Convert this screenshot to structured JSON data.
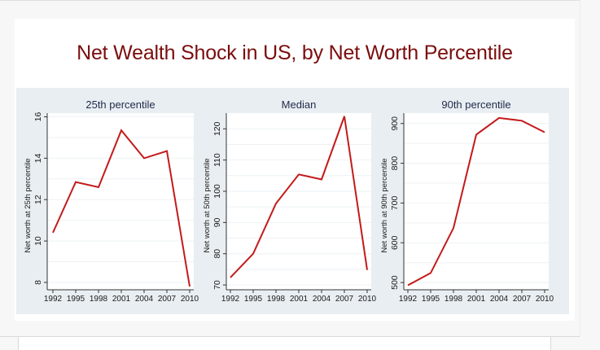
{
  "slide": {
    "title": "Net Wealth Shock in US, by Net Worth Percentile"
  },
  "colors": {
    "title": "#7b0d0d",
    "line": "#c41a1a",
    "graph_background": "#e9eef2",
    "plot_background": "#ffffff",
    "grid": "#eef2f5",
    "axis_text": "#1a1a1a",
    "panel_title": "#1f2a4a"
  },
  "chart_data": [
    {
      "type": "line",
      "title": "25th percentile",
      "xlabel": "",
      "ylabel": "Net worth at 25th percentile",
      "x": [
        1992,
        1995,
        1998,
        2001,
        2004,
        2007,
        2010
      ],
      "values": [
        10.4,
        12.85,
        12.6,
        15.35,
        14.0,
        14.35,
        7.8
      ],
      "xticks": [
        "1992",
        "1995",
        "1998",
        "2001",
        "2004",
        "2007",
        "2010"
      ],
      "yticks": [
        8,
        10,
        12,
        14,
        16
      ],
      "ytick_labels": [
        "8",
        "10",
        "12",
        "14",
        "16"
      ],
      "ylim": [
        7.8,
        16.1
      ],
      "grid": true
    },
    {
      "type": "line",
      "title": "Median",
      "xlabel": "",
      "ylabel": "Net worth at 50th percentile",
      "x": [
        1992,
        1995,
        1998,
        2001,
        2004,
        2007,
        2010
      ],
      "values": [
        72.4,
        80.0,
        96.1,
        105.4,
        103.8,
        124.0,
        74.8
      ],
      "xticks": [
        "1992",
        "1995",
        "1998",
        "2001",
        "2004",
        "2007",
        "2010"
      ],
      "yticks": [
        70,
        80,
        90,
        100,
        110,
        120
      ],
      "ytick_labels": [
        "70",
        "80",
        "90",
        "100",
        "110",
        "120"
      ],
      "ylim": [
        69.5,
        124.5
      ],
      "grid": true
    },
    {
      "type": "line",
      "title": "90th percentile",
      "xlabel": "",
      "ylabel": "Net worth at 90th percentile",
      "x": [
        1992,
        1995,
        1998,
        2001,
        2004,
        2007,
        2010
      ],
      "values": [
        493,
        524,
        637,
        872,
        914,
        907,
        878
      ],
      "xticks": [
        "1992",
        "1995",
        "1998",
        "2001",
        "2004",
        "2007",
        "2010"
      ],
      "yticks": [
        500,
        600,
        700,
        800,
        900
      ],
      "ytick_labels": [
        "500",
        "600",
        "700",
        "800",
        "900"
      ],
      "ylim": [
        490,
        922
      ],
      "grid": true
    }
  ]
}
